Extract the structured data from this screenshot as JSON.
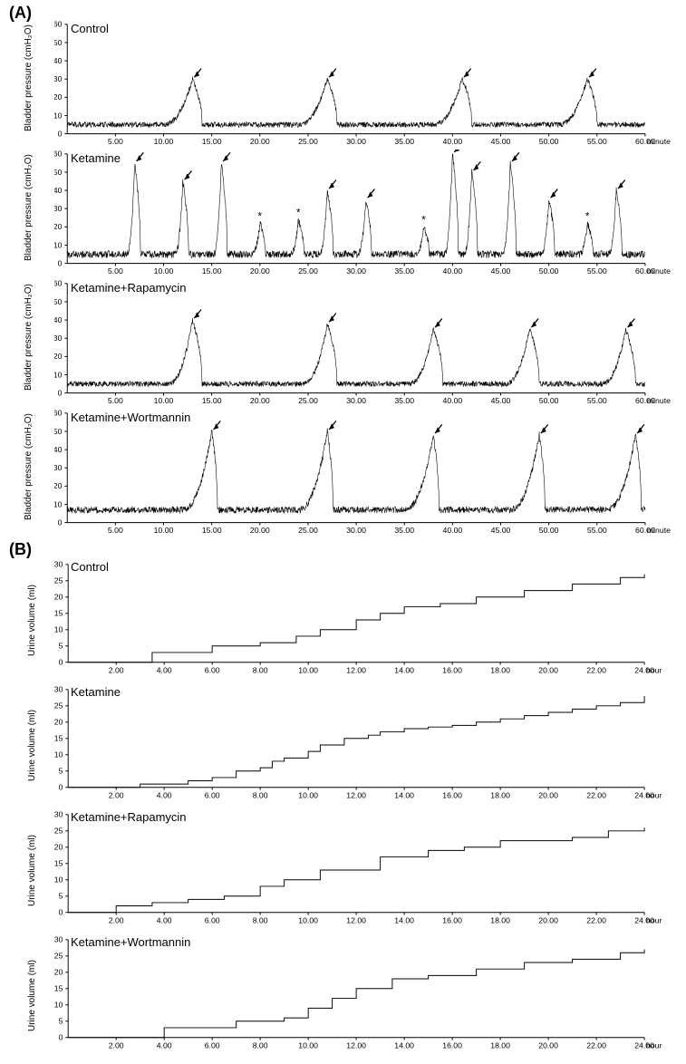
{
  "figure": {
    "background_color": "#ffffff",
    "stroke_color": "#000000",
    "axis_color": "#000000",
    "text_color": "#000000",
    "label_fontsize": 10,
    "title_fontsize": 13,
    "section_fontsize": 18,
    "line_width": 1,
    "noise_line_width": 0.6,
    "arrow_size": 8,
    "asterisk_fontsize": 12
  },
  "sectionA": {
    "label": "(A)",
    "ylabel": "Bladder pressure (cmH₂O)",
    "xlabel": "minute",
    "ylim": [
      0,
      60
    ],
    "ytick_step": 10,
    "xlim": [
      0,
      60
    ],
    "xtick_step": 5,
    "panels": [
      {
        "title": "Control",
        "baseline": 5,
        "noise_amp": 1.5,
        "spikes": [
          {
            "t": 13,
            "h": 30,
            "arrow": true,
            "asterisk": false
          },
          {
            "t": 27,
            "h": 30,
            "arrow": true,
            "asterisk": false
          },
          {
            "t": 41,
            "h": 30,
            "arrow": true,
            "asterisk": false
          },
          {
            "t": 54,
            "h": 30,
            "arrow": true,
            "asterisk": false
          }
        ],
        "rise_width": 3,
        "fall_width": 1
      },
      {
        "title": "Ketamine",
        "baseline": 5,
        "noise_amp": 2,
        "spikes": [
          {
            "t": 7,
            "h": 55,
            "arrow": true,
            "asterisk": false
          },
          {
            "t": 12,
            "h": 45,
            "arrow": true,
            "asterisk": false
          },
          {
            "t": 16,
            "h": 55,
            "arrow": true,
            "asterisk": false
          },
          {
            "t": 20,
            "h": 22,
            "arrow": false,
            "asterisk": true
          },
          {
            "t": 24,
            "h": 24,
            "arrow": false,
            "asterisk": true
          },
          {
            "t": 27,
            "h": 40,
            "arrow": true,
            "asterisk": false
          },
          {
            "t": 31,
            "h": 35,
            "arrow": true,
            "asterisk": false
          },
          {
            "t": 37,
            "h": 20,
            "arrow": false,
            "asterisk": true
          },
          {
            "t": 40,
            "h": 60,
            "arrow": true,
            "asterisk": false
          },
          {
            "t": 42,
            "h": 50,
            "arrow": true,
            "asterisk": false
          },
          {
            "t": 46,
            "h": 55,
            "arrow": true,
            "asterisk": false
          },
          {
            "t": 50,
            "h": 35,
            "arrow": true,
            "asterisk": false
          },
          {
            "t": 54,
            "h": 22,
            "arrow": false,
            "asterisk": true
          },
          {
            "t": 57,
            "h": 40,
            "arrow": true,
            "asterisk": false
          }
        ],
        "rise_width": 0.8,
        "fall_width": 0.6
      },
      {
        "title": "Ketamine+Rapamycin",
        "baseline": 5,
        "noise_amp": 1.5,
        "spikes": [
          {
            "t": 13,
            "h": 40,
            "arrow": true,
            "asterisk": false
          },
          {
            "t": 27,
            "h": 38,
            "arrow": true,
            "asterisk": false
          },
          {
            "t": 38,
            "h": 35,
            "arrow": true,
            "asterisk": false
          },
          {
            "t": 48,
            "h": 35,
            "arrow": true,
            "asterisk": false
          },
          {
            "t": 58,
            "h": 35,
            "arrow": true,
            "asterisk": false
          }
        ],
        "rise_width": 2.5,
        "fall_width": 1
      },
      {
        "title": "Ketamine+Wortmannin",
        "baseline": 7,
        "noise_amp": 1.8,
        "spikes": [
          {
            "t": 15,
            "h": 50,
            "arrow": true,
            "asterisk": false
          },
          {
            "t": 27,
            "h": 50,
            "arrow": true,
            "asterisk": false
          },
          {
            "t": 38,
            "h": 48,
            "arrow": true,
            "asterisk": false
          },
          {
            "t": 49,
            "h": 48,
            "arrow": true,
            "asterisk": false
          },
          {
            "t": 59,
            "h": 48,
            "arrow": true,
            "asterisk": false
          }
        ],
        "rise_width": 3,
        "fall_width": 0.6
      }
    ]
  },
  "sectionB": {
    "label": "(B)",
    "ylabel": "Urine volume (ml)",
    "xlabel": "hour",
    "ylim": [
      0,
      30
    ],
    "ytick_step": 5,
    "xlim": [
      0,
      24
    ],
    "xtick_step": 2,
    "panels": [
      {
        "title": "Control",
        "steps": [
          [
            0,
            0
          ],
          [
            3.5,
            3
          ],
          [
            6,
            5
          ],
          [
            8,
            6
          ],
          [
            9.5,
            8
          ],
          [
            10.5,
            10
          ],
          [
            12,
            13
          ],
          [
            13,
            15
          ],
          [
            14,
            17
          ],
          [
            15.5,
            18
          ],
          [
            17,
            20
          ],
          [
            19,
            22
          ],
          [
            21,
            24
          ],
          [
            23,
            26
          ],
          [
            24,
            27
          ]
        ]
      },
      {
        "title": "Ketamine",
        "steps": [
          [
            0,
            0
          ],
          [
            3,
            1
          ],
          [
            5,
            2
          ],
          [
            6,
            3
          ],
          [
            7,
            5
          ],
          [
            8,
            6
          ],
          [
            8.5,
            8
          ],
          [
            9,
            9
          ],
          [
            10,
            11
          ],
          [
            10.5,
            13
          ],
          [
            11.5,
            15
          ],
          [
            12.5,
            16
          ],
          [
            13,
            17
          ],
          [
            14,
            18
          ],
          [
            15,
            18.5
          ],
          [
            16,
            19
          ],
          [
            17,
            20
          ],
          [
            18,
            21
          ],
          [
            19,
            22
          ],
          [
            20,
            23
          ],
          [
            21,
            24
          ],
          [
            22,
            25
          ],
          [
            23,
            26
          ],
          [
            24,
            28
          ]
        ]
      },
      {
        "title": "Ketamine+Rapamycin",
        "steps": [
          [
            0,
            0
          ],
          [
            2,
            2
          ],
          [
            3.5,
            3
          ],
          [
            5,
            4
          ],
          [
            6.5,
            5
          ],
          [
            8,
            8
          ],
          [
            9,
            10
          ],
          [
            10.5,
            13
          ],
          [
            13,
            17
          ],
          [
            15,
            19
          ],
          [
            16.5,
            20
          ],
          [
            18,
            22
          ],
          [
            21,
            23
          ],
          [
            22.5,
            25
          ],
          [
            24,
            26
          ]
        ]
      },
      {
        "title": "Ketamine+Wortmannin",
        "steps": [
          [
            0,
            0
          ],
          [
            4,
            3
          ],
          [
            7,
            5
          ],
          [
            9,
            6
          ],
          [
            10,
            9
          ],
          [
            11,
            12
          ],
          [
            12,
            15
          ],
          [
            13.5,
            18
          ],
          [
            15,
            19
          ],
          [
            17,
            21
          ],
          [
            19,
            23
          ],
          [
            21,
            24
          ],
          [
            23,
            26
          ],
          [
            24,
            27
          ]
        ]
      }
    ]
  }
}
